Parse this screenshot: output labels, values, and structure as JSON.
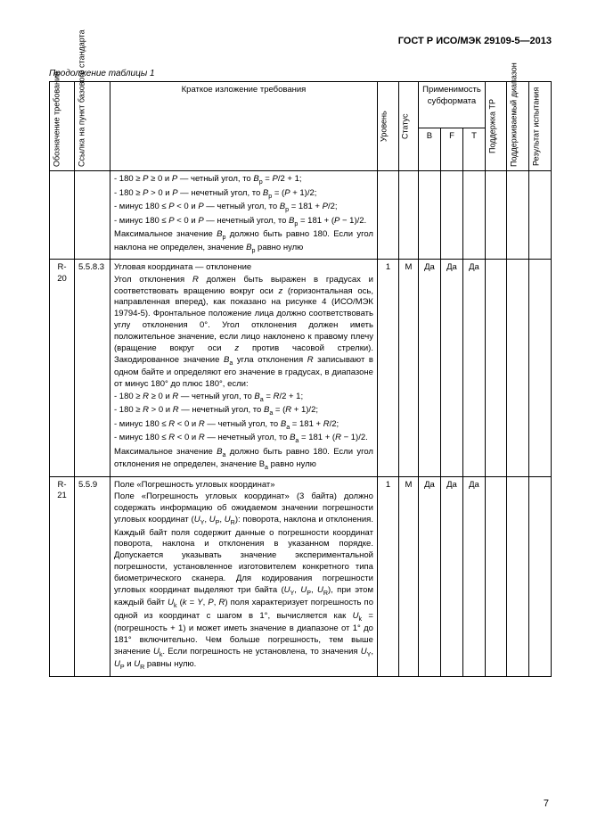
{
  "doc_title": "ГОСТ Р ИСО/МЭК 29109-5—2013",
  "continuation": "Продолжение таблицы 1",
  "page_number": "7",
  "header": {
    "col1": "Обозначение\nтребования",
    "col2": "Ссылка на пункт\nбазового стандарта",
    "col3": "Краткое изложение требования",
    "col4": "Уровень",
    "col5": "Статус",
    "group": "Применимость субформата",
    "col6": "B",
    "col7": "F",
    "col8": "T",
    "col9": "Поддержка ТР",
    "col10": "Поддерживаемый\nдиапазон",
    "col11": "Результат\nиспытания"
  },
  "rows": [
    {
      "id": "",
      "ref": "",
      "desc_lines": [
        "- 180 ≥ <span class='it'>P</span> ≥ 0 и <span class='it'>P</span> — четный угол, то <span class='it'>B</span><sub>p</sub> = <span class='it'>P</span>/2 + 1;",
        "- 180 ≥ <span class='it'>P</span> > 0 и <span class='it'>P</span> — нечетный угол, то <span class='it'>B</span><sub>p</sub> = (<span class='it'>P</span> + 1)/2;",
        "- минус 180 ≤ <span class='it'>P</span> < 0 и <span class='it'>P</span> — четный угол, то <span class='it'>B</span><sub>p</sub> = 181 + <span class='it'>P</span>/2;",
        "- минус 180 ≤ <span class='it'>P</span> < 0 и <span class='it'>P</span> — нечетный угол, то <span class='it'>B</span><sub>p</sub> = 181 + (<span class='it'>P</span> − 1)/2.",
        "Максимальное значение <span class='it'>B</span><sub>p</sub> должно быть равно 180. Если угол наклона не определен, значение <span class='it'>B</span><sub>p</sub> равно нулю"
      ],
      "level": "",
      "status": "",
      "b": "",
      "f": "",
      "t": ""
    },
    {
      "id": "R-20",
      "ref": "5.5.8.3",
      "desc_lines": [
        "Угловая координата — отклонение",
        "Угол отклонения <span class='it'>R</span> должен быть выражен в градусах и соответствовать вращению вокруг оси <span class='it'>z</span> (горизонтальная ось, направленная вперед), как показано на рисунке 4 (ИСО/МЭК 19794-5). Фронтальное положение лица должно соответствовать углу отклонения 0°. Угол отклонения должен иметь положительное значение, если лицо наклонено к правому плечу (вращение вокруг оси <span class='it'>z</span> против часовой стрелки). Закодированное значение <span class='it'>B</span><sub>а</sub> угла отклонения <span class='it'>R</span> записывают в одном байте и определяют его значение в градусах, в диапазоне от минус 180° до плюс 180°, если:",
        "- 180 ≥ <span class='it'>R</span> ≥ 0 и <span class='it'>R</span> — четный угол, то <span class='it'>B</span><sub>а</sub> = <span class='it'>R</span>/2 + 1;",
        "- 180 ≥ <span class='it'>R</span> > 0 и <span class='it'>R</span> — нечетный угол, то <span class='it'>B</span><sub>а</sub> = (<span class='it'>R</span> + 1)/2;",
        "- минус 180 ≤ <span class='it'>R</span> < 0 и <span class='it'>R</span> — четный угол, то <span class='it'>B</span><sub>а</sub> = 181 + <span class='it'>R</span>/2;",
        "- минус 180 ≤ <span class='it'>R</span> < 0 и <span class='it'>R</span> — нечетный угол, то <span class='it'>B</span><sub>а</sub> = 181 + (<span class='it'>R</span> − 1)/2.",
        "Максимальное значение <span class='it'>B</span><sub>а</sub> должно быть равно 180. Если угол отклонения не определен, значение В<sub>а</sub> равно нулю"
      ],
      "level": "1",
      "status": "М",
      "b": "Да",
      "f": "Да",
      "t": "Да"
    },
    {
      "id": "R-21",
      "ref": "5.5.9",
      "desc_lines": [
        "Поле «Погрешность угловых координат»",
        "Поле «Погрешность угловых координат» (3 байта) должно содержать информацию об ожидаемом значении погрешности угловых координат (<span class='it'>U</span><sub>Y</sub>, <span class='it'>U</span><sub>P</sub>, <span class='it'>U</span><sub>R</sub>): поворота, наклона и отклонения. Каждый байт поля содержит данные о погрешности координат поворота, наклона и отклонения в указанном порядке. Допускается указывать значение экспериментальной погрешности, установленное изготовителем конкретного типа биометрического сканера. Для кодирования погрешности угловых координат выделяют три байта (<span class='it'>U</span><sub>Y</sub>, <span class='it'>U</span><sub>P</sub>, <span class='it'>U</span><sub>R</sub>), при этом каждый байт <span class='it'>U</span><sub>k</sub> (<span class='it'>k</span> = <span class='it'>Y</span>, <span class='it'>P</span>, <span class='it'>R</span>) поля характеризует погрешность по одной из координат с шагом в 1°, вычисляется как <span class='it'>U</span><sub>k</sub> = (погрешность + 1) и может иметь значение в диапазоне от 1° до 181° включительно. Чем больше погрешность, тем выше значение <span class='it'>U</span><sub>k</sub>. Если погрешность не установлена, то значения <span class='it'>U</span><sub>Y</sub>, <span class='it'>U</span><sub>P</sub> и <span class='it'>U</span><sub>R</sub> равны нулю."
      ],
      "level": "1",
      "status": "М",
      "b": "Да",
      "f": "Да",
      "t": "Да"
    }
  ]
}
